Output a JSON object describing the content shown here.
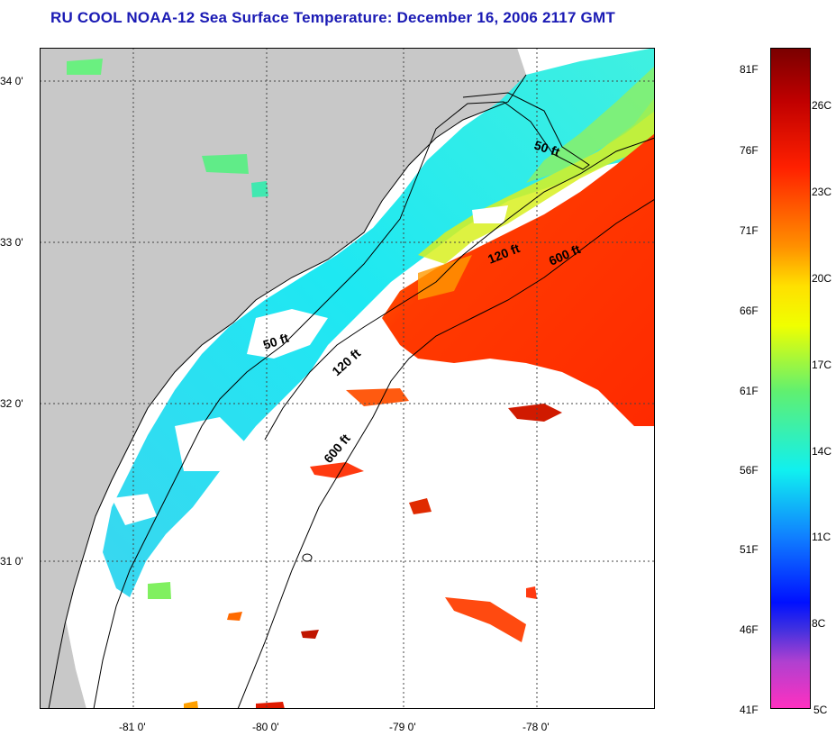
{
  "header": {
    "title": "RU COOL  NOAA-12  Sea Surface Temperature:  December 16, 2006 2117 GMT"
  },
  "map": {
    "lat_labels": [
      "34 0'",
      "33 0'",
      "32 0'",
      "31 0'"
    ],
    "lon_labels": [
      "-81 0'",
      "-80 0'",
      "-79 0'",
      "-78 0'"
    ],
    "contour_labels": {
      "c50_north": "50 ft",
      "c50_south": "50 ft",
      "c120_north": "120 ft",
      "c120_south": "120 ft",
      "c600_north": "600 ft",
      "c600_south": "600 ft"
    },
    "colors": {
      "land": "#c8c8c8",
      "no_data": "#ffffff",
      "cold": "#22e6ee",
      "warm": "#ff3c00"
    }
  },
  "colorbar": {
    "fahrenheit": [
      "81F",
      "76F",
      "71F",
      "66F",
      "61F",
      "56F",
      "51F",
      "46F",
      "41F"
    ],
    "celsius": [
      "26C",
      "23C",
      "20C",
      "17C",
      "14C",
      "11C",
      "8C",
      "5C"
    ]
  }
}
